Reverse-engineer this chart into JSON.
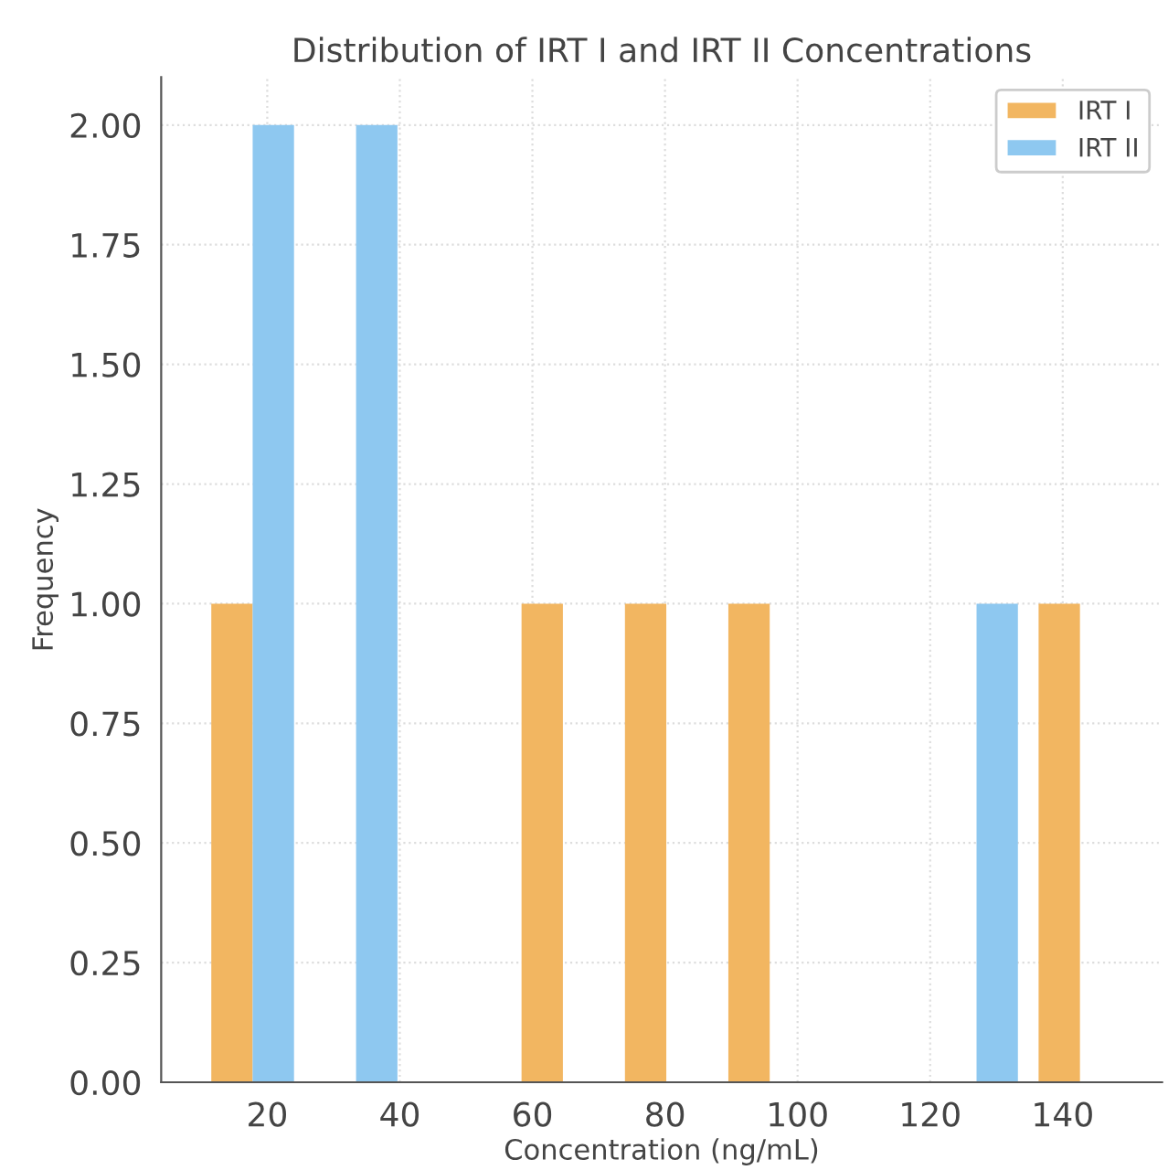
{
  "chart_data": {
    "type": "histogram",
    "title": "Distribution of IRT I and IRT II Concentrations",
    "xlabel": "Concentration (ng/mL)",
    "ylabel": "Frequency",
    "bins": [
      10,
      25.6,
      41.2,
      56.8,
      72.4,
      88,
      103.6,
      119.2,
      134.8,
      150.4
    ],
    "series": [
      {
        "name": "IRT I",
        "color": "#f2b661",
        "values": [
          1,
          0,
          0,
          1,
          1,
          1,
          0,
          0,
          1
        ]
      },
      {
        "name": "IRT II",
        "color": "#8ec8f0",
        "values": [
          2,
          2,
          0,
          0,
          0,
          0,
          0,
          1,
          0
        ]
      }
    ],
    "xlim": [
      4,
      155
    ],
    "xticks": [
      20,
      40,
      60,
      80,
      100,
      120,
      140
    ],
    "ylim": [
      0,
      2.1
    ],
    "yticks": [
      {
        "value": 0,
        "label": "0.00"
      },
      {
        "value": 0.25,
        "label": "0.25"
      },
      {
        "value": 0.5,
        "label": "0.50"
      },
      {
        "value": 0.75,
        "label": "0.75"
      },
      {
        "value": 1,
        "label": "1.00"
      },
      {
        "value": 1.25,
        "label": "1.25"
      },
      {
        "value": 1.5,
        "label": "1.50"
      },
      {
        "value": 1.75,
        "label": "1.75"
      },
      {
        "value": 2,
        "label": "2.00"
      }
    ],
    "grid": true,
    "legend": "top right"
  }
}
